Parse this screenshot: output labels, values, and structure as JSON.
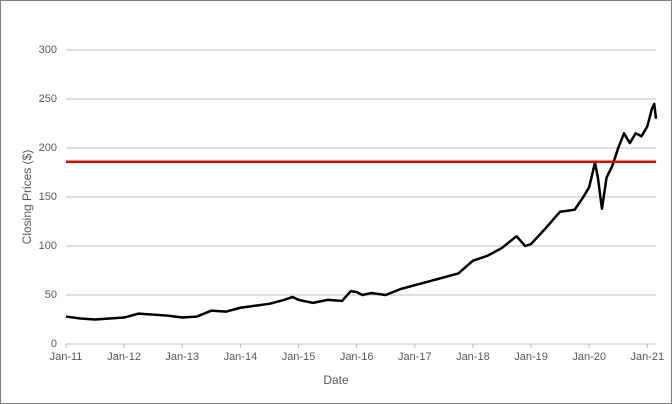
{
  "chart_data": {
    "type": "line",
    "x_label": "Date",
    "y_label": "Closing Prices ($)",
    "x": [
      2011.0,
      2011.25,
      2011.5,
      2011.75,
      2012.0,
      2012.25,
      2012.5,
      2012.75,
      2013.0,
      2013.25,
      2013.5,
      2013.75,
      2014.0,
      2014.25,
      2014.5,
      2014.75,
      2014.9,
      2015.0,
      2015.25,
      2015.5,
      2015.75,
      2015.9,
      2016.0,
      2016.1,
      2016.25,
      2016.5,
      2016.75,
      2017.0,
      2017.25,
      2017.5,
      2017.75,
      2018.0,
      2018.25,
      2018.5,
      2018.75,
      2018.9,
      2019.0,
      2019.25,
      2019.5,
      2019.75,
      2019.9,
      2020.0,
      2020.1,
      2020.15,
      2020.22,
      2020.3,
      2020.4,
      2020.5,
      2020.6,
      2020.7,
      2020.8,
      2020.9,
      2021.0,
      2021.08,
      2021.12,
      2021.15
    ],
    "series": [
      {
        "color": "#000000",
        "values": [
          28,
          26,
          25,
          26,
          27,
          31,
          30,
          29,
          27,
          28,
          34,
          33,
          37,
          39,
          41,
          45,
          48,
          45,
          42,
          45,
          44,
          54,
          53,
          50,
          52,
          50,
          56,
          60,
          64,
          68,
          72,
          85,
          90,
          98,
          110,
          100,
          102,
          118,
          135,
          137,
          150,
          160,
          185,
          170,
          138,
          170,
          182,
          200,
          215,
          205,
          215,
          212,
          222,
          240,
          245,
          230
        ]
      }
    ],
    "reference_line": {
      "value": 186,
      "color": "#e00000"
    },
    "xlim": [
      2011,
      2021.15
    ],
    "xticks": [
      {
        "value": 2011,
        "label": "Jan-11"
      },
      {
        "value": 2012,
        "label": "Jan-12"
      },
      {
        "value": 2013,
        "label": "Jan-13"
      },
      {
        "value": 2014,
        "label": "Jan-14"
      },
      {
        "value": 2015,
        "label": "Jan-15"
      },
      {
        "value": 2016,
        "label": "Jan-16"
      },
      {
        "value": 2017,
        "label": "Jan-17"
      },
      {
        "value": 2018,
        "label": "Jan-18"
      },
      {
        "value": 2019,
        "label": "Jan-19"
      },
      {
        "value": 2020,
        "label": "Jan-20"
      },
      {
        "value": 2021,
        "label": "Jan-21"
      }
    ],
    "ylim": [
      0,
      300
    ],
    "yticks": [
      0,
      50,
      100,
      150,
      200,
      250,
      300
    ],
    "grid": true
  }
}
